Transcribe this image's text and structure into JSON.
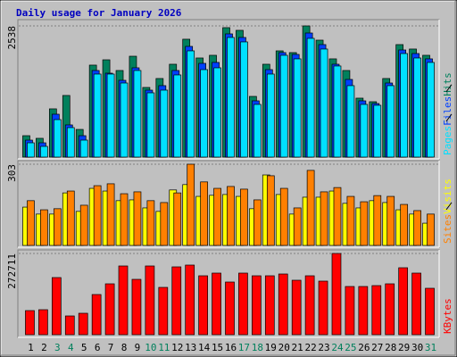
{
  "chart_data": [
    {
      "type": "bar",
      "title": "Daily usage for January 2026",
      "ylim": [
        0,
        2538
      ],
      "yticks": [
        2538
      ],
      "series": [
        {
          "name": "Hits",
          "color": "#00805c",
          "values": [
            414,
            363,
            933,
            1192,
            535,
            1779,
            1882,
            1675,
            1951,
            1347,
            1520,
            1796,
            2280,
            1917,
            1969,
            2504,
            2452,
            1174,
            1796,
            2055,
            2021,
            2538,
            2262,
            1900,
            1675,
            1140,
            1071,
            1520,
            2176,
            2090,
            1969
          ]
        },
        {
          "name": "Files",
          "color": "#0040ff",
          "values": [
            328,
            276,
            829,
            622,
            414,
            1675,
            1623,
            1485,
            1727,
            1295,
            1382,
            1675,
            2141,
            1813,
            1831,
            2383,
            2314,
            1088,
            1692,
            2021,
            1986,
            2400,
            2176,
            1796,
            1502,
            1088,
            1036,
            1433,
            2072,
            2003,
            1900
          ]
        },
        {
          "name": "Pages",
          "color": "#00e0ff",
          "values": [
            276,
            207,
            725,
            570,
            328,
            1606,
            1606,
            1433,
            1675,
            1243,
            1295,
            1589,
            2055,
            1692,
            1727,
            2314,
            2228,
            1019,
            1606,
            1969,
            1900,
            2297,
            2090,
            1762,
            1382,
            1019,
            1002,
            1382,
            2003,
            1917,
            1831
          ]
        }
      ]
    },
    {
      "type": "bar",
      "ylim": [
        0,
        303
      ],
      "yticks": [
        303
      ],
      "series": [
        {
          "name": "Visits",
          "color": "#ffff00",
          "values": [
            143,
            117,
            117,
            196,
            127,
            213,
            203,
            167,
            170,
            140,
            127,
            207,
            227,
            183,
            187,
            190,
            183,
            137,
            263,
            190,
            117,
            180,
            180,
            203,
            157,
            140,
            167,
            160,
            133,
            117,
            83
          ]
        },
        {
          "name": "Sites",
          "color": "#ff8000",
          "values": [
            167,
            133,
            137,
            203,
            150,
            223,
            230,
            193,
            200,
            167,
            160,
            196,
            303,
            237,
            213,
            220,
            210,
            170,
            260,
            213,
            140,
            280,
            200,
            216,
            183,
            163,
            186,
            183,
            153,
            130,
            117
          ]
        }
      ]
    },
    {
      "type": "bar",
      "ylim": [
        0,
        272711
      ],
      "yticks": [
        272711
      ],
      "categories": [
        "1",
        "2",
        "3",
        "4",
        "5",
        "6",
        "7",
        "8",
        "9",
        "10",
        "11",
        "12",
        "13",
        "14",
        "15",
        "16",
        "17",
        "18",
        "19",
        "20",
        "21",
        "22",
        "23",
        "24",
        "25",
        "26",
        "27",
        "28",
        "29",
        "30",
        "31"
      ],
      "category_colors": [
        "#000000",
        "#000000",
        "#00805c",
        "#00805c",
        "#000000",
        "#000000",
        "#000000",
        "#000000",
        "#000000",
        "#00805c",
        "#00805c",
        "#000000",
        "#000000",
        "#000000",
        "#000000",
        "#000000",
        "#00805c",
        "#00805c",
        "#000000",
        "#000000",
        "#000000",
        "#000000",
        "#000000",
        "#00805c",
        "#00805c",
        "#000000",
        "#000000",
        "#000000",
        "#000000",
        "#000000",
        "#00805c"
      ],
      "series": [
        {
          "name": "KBytes",
          "color": "#ff0000",
          "values": [
            80919,
            83916,
            191808,
            62937,
            71928,
            134865,
            170829,
            230769,
            185814,
            230769,
            158841,
            227772,
            233766,
            197802,
            206793,
            176823,
            206793,
            197802,
            197802,
            203796,
            182817,
            197802,
            179820,
            272711,
            161838,
            161838,
            164835,
            170829,
            224775,
            206793,
            155844
          ]
        }
      ]
    }
  ]
}
